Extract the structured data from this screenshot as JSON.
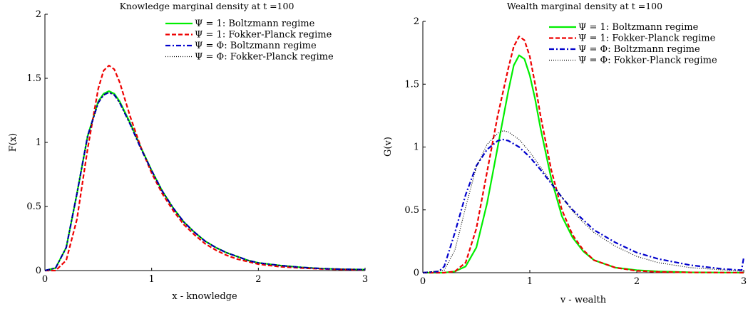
{
  "chart_data": [
    {
      "type": "line",
      "title": "Knowledge marginal density at t =100",
      "xlabel": "x - knowledge",
      "ylabel": "F(x)",
      "xlim": [
        0,
        3
      ],
      "ylim": [
        0,
        2
      ],
      "xticks": [
        0,
        1,
        2,
        3
      ],
      "xtick_labels": [
        "0",
        "1",
        "2",
        "3"
      ],
      "yticks": [
        0,
        0.5,
        1,
        1.5,
        2
      ],
      "ytick_labels": [
        "0",
        "0.5",
        "1",
        "1.5",
        "2"
      ],
      "grid": false,
      "legend_position": "top-right",
      "series": [
        {
          "name": "Ψ = 1: Boltzmann regime",
          "color": "#00ee00",
          "dash": "solid",
          "x": [
            0,
            0.1,
            0.2,
            0.3,
            0.4,
            0.5,
            0.55,
            0.6,
            0.65,
            0.7,
            0.8,
            0.9,
            1.0,
            1.1,
            1.2,
            1.3,
            1.4,
            1.5,
            1.6,
            1.7,
            1.8,
            1.9,
            2.0,
            2.2,
            2.4,
            2.6,
            2.8,
            3.0
          ],
          "y": [
            0,
            0.02,
            0.18,
            0.6,
            1.05,
            1.32,
            1.38,
            1.4,
            1.38,
            1.32,
            1.15,
            0.96,
            0.78,
            0.62,
            0.49,
            0.38,
            0.3,
            0.23,
            0.18,
            0.14,
            0.11,
            0.08,
            0.06,
            0.04,
            0.025,
            0.015,
            0.01,
            0.008
          ]
        },
        {
          "name": "Ψ = 1: Fokker-Planck regime",
          "color": "#ee0000",
          "dash": "dashed",
          "x": [
            0,
            0.1,
            0.2,
            0.3,
            0.4,
            0.5,
            0.55,
            0.6,
            0.65,
            0.7,
            0.8,
            0.9,
            1.0,
            1.1,
            1.2,
            1.3,
            1.4,
            1.5,
            1.6,
            1.7,
            1.8,
            1.9,
            2.0,
            2.2,
            2.4,
            2.6,
            2.8,
            3.0
          ],
          "y": [
            0,
            0.0,
            0.08,
            0.4,
            0.95,
            1.42,
            1.56,
            1.6,
            1.57,
            1.47,
            1.2,
            0.96,
            0.76,
            0.6,
            0.47,
            0.36,
            0.28,
            0.21,
            0.16,
            0.12,
            0.09,
            0.07,
            0.05,
            0.03,
            0.02,
            0.012,
            0.008,
            0.005
          ]
        },
        {
          "name": "Ψ = Φ: Boltzmann regime",
          "color": "#0000cc",
          "dash": "dashdot",
          "x": [
            0,
            0.1,
            0.2,
            0.3,
            0.4,
            0.5,
            0.55,
            0.6,
            0.65,
            0.7,
            0.8,
            0.9,
            1.0,
            1.1,
            1.2,
            1.3,
            1.4,
            1.5,
            1.6,
            1.7,
            1.8,
            1.9,
            2.0,
            2.2,
            2.4,
            2.6,
            2.8,
            3.0
          ],
          "y": [
            0,
            0.02,
            0.18,
            0.6,
            1.05,
            1.31,
            1.37,
            1.39,
            1.37,
            1.31,
            1.14,
            0.95,
            0.78,
            0.62,
            0.49,
            0.38,
            0.3,
            0.23,
            0.18,
            0.14,
            0.11,
            0.08,
            0.06,
            0.04,
            0.025,
            0.015,
            0.01,
            0.008
          ]
        },
        {
          "name": "Ψ = Φ: Fokker-Planck regime",
          "color": "#000000",
          "dash": "dotted",
          "x": [
            0,
            0.1,
            0.2,
            0.3,
            0.4,
            0.5,
            0.55,
            0.6,
            0.65,
            0.7,
            0.8,
            0.9,
            1.0,
            1.1,
            1.2,
            1.3,
            1.4,
            1.5,
            1.6,
            1.7,
            1.8,
            1.9,
            2.0,
            2.2,
            2.4,
            2.6,
            2.8,
            3.0
          ],
          "y": [
            0,
            0.02,
            0.18,
            0.6,
            1.04,
            1.31,
            1.37,
            1.39,
            1.37,
            1.31,
            1.14,
            0.95,
            0.78,
            0.62,
            0.49,
            0.38,
            0.3,
            0.23,
            0.18,
            0.14,
            0.11,
            0.08,
            0.06,
            0.04,
            0.025,
            0.015,
            0.01,
            0.008
          ]
        }
      ]
    },
    {
      "type": "line",
      "title": "Wealth marginal density at t =100",
      "xlabel": "v - wealth",
      "ylabel": "G(v)",
      "xlim": [
        0,
        3
      ],
      "ylim": [
        0,
        2
      ],
      "xticks": [
        0,
        1,
        2,
        3
      ],
      "xtick_labels": [
        "0",
        "1",
        "2",
        "3"
      ],
      "yticks": [
        0,
        0.5,
        1,
        1.5,
        2
      ],
      "ytick_labels": [
        "0",
        "0.5",
        "1",
        "1.5",
        "2"
      ],
      "grid": false,
      "legend_position": "top-right",
      "series": [
        {
          "name": "Ψ = 1: Boltzmann regime",
          "color": "#00ee00",
          "dash": "solid",
          "x": [
            0,
            0.2,
            0.3,
            0.4,
            0.5,
            0.6,
            0.7,
            0.8,
            0.85,
            0.9,
            0.95,
            1.0,
            1.05,
            1.1,
            1.2,
            1.3,
            1.4,
            1.5,
            1.6,
            1.8,
            2.0,
            2.2,
            2.5,
            3.0
          ],
          "y": [
            0,
            0,
            0.01,
            0.05,
            0.2,
            0.55,
            1.0,
            1.45,
            1.65,
            1.73,
            1.7,
            1.57,
            1.38,
            1.15,
            0.75,
            0.45,
            0.28,
            0.17,
            0.1,
            0.04,
            0.02,
            0.01,
            0.003,
            0.0
          ]
        },
        {
          "name": "Ψ = 1: Fokker-Planck regime",
          "color": "#ee0000",
          "dash": "dashed",
          "x": [
            0,
            0.2,
            0.3,
            0.4,
            0.5,
            0.6,
            0.7,
            0.8,
            0.85,
            0.9,
            0.95,
            1.0,
            1.05,
            1.1,
            1.2,
            1.3,
            1.4,
            1.5,
            1.6,
            1.8,
            2.0,
            2.2,
            2.5,
            3.0
          ],
          "y": [
            0,
            0,
            0.01,
            0.08,
            0.35,
            0.8,
            1.25,
            1.63,
            1.8,
            1.88,
            1.85,
            1.72,
            1.5,
            1.25,
            0.82,
            0.5,
            0.3,
            0.18,
            0.1,
            0.04,
            0.015,
            0.006,
            0.002,
            0.0
          ]
        },
        {
          "name": "Ψ = Φ: Boltzmann regime",
          "color": "#0000cc",
          "dash": "dashdot",
          "x": [
            0,
            0.15,
            0.2,
            0.3,
            0.4,
            0.5,
            0.6,
            0.7,
            0.75,
            0.8,
            0.9,
            1.0,
            1.1,
            1.2,
            1.3,
            1.4,
            1.5,
            1.6,
            1.8,
            2.0,
            2.2,
            2.5,
            2.8,
            2.98,
            3.0
          ],
          "y": [
            0,
            0.01,
            0.05,
            0.32,
            0.62,
            0.85,
            0.98,
            1.05,
            1.06,
            1.05,
            1.0,
            0.92,
            0.82,
            0.71,
            0.6,
            0.5,
            0.42,
            0.34,
            0.24,
            0.16,
            0.11,
            0.06,
            0.03,
            0.02,
            0.12
          ]
        },
        {
          "name": "Ψ = Φ: Fokker-Planck regime",
          "color": "#000000",
          "dash": "dotted",
          "x": [
            0,
            0.2,
            0.3,
            0.4,
            0.5,
            0.6,
            0.7,
            0.75,
            0.8,
            0.9,
            1.0,
            1.1,
            1.2,
            1.3,
            1.4,
            1.5,
            1.6,
            1.8,
            2.0,
            2.2,
            2.5,
            3.0
          ],
          "y": [
            0,
            0.02,
            0.18,
            0.52,
            0.84,
            1.02,
            1.11,
            1.13,
            1.12,
            1.06,
            0.96,
            0.84,
            0.72,
            0.6,
            0.49,
            0.4,
            0.32,
            0.21,
            0.13,
            0.08,
            0.04,
            0.01
          ]
        }
      ]
    }
  ]
}
